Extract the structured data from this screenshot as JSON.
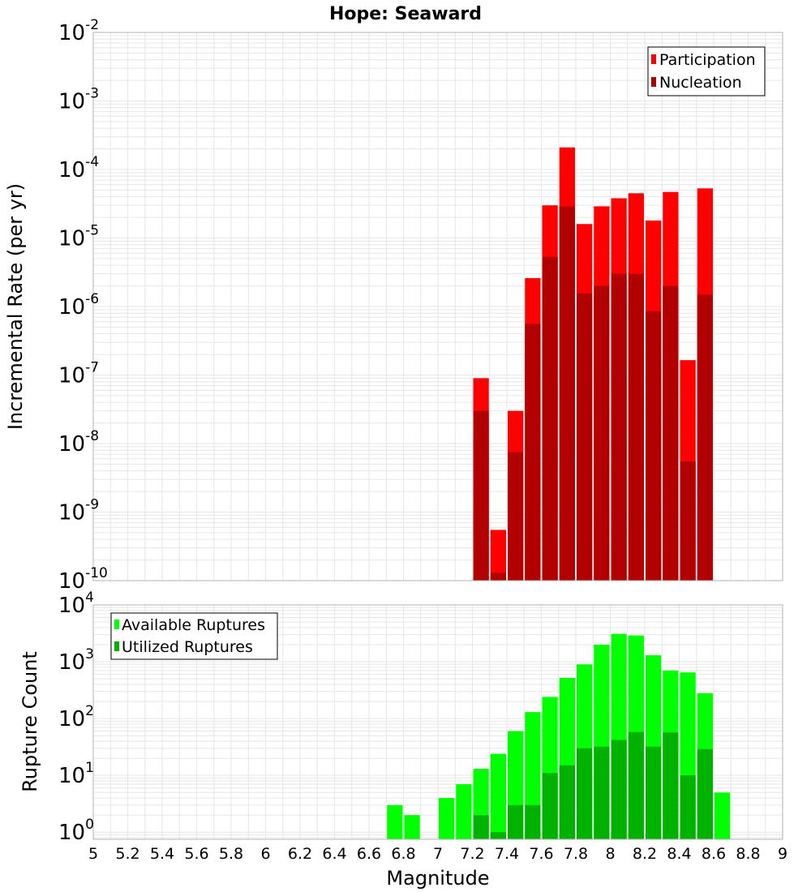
{
  "title": "Hope: Seaward",
  "x_axis": {
    "label": "Magnitude",
    "min": 5,
    "max": 9,
    "tick_labels": [
      "5",
      "5.2",
      "5.4",
      "5.6",
      "5.8",
      "6",
      "6.2",
      "6.4",
      "6.6",
      "6.8",
      "7",
      "7.2",
      "7.4",
      "7.6",
      "7.8",
      "8",
      "8.2",
      "8.4",
      "8.6",
      "8.8",
      "9"
    ]
  },
  "colors": {
    "participation": "#ff0000",
    "nucleation": "#b20000",
    "available": "#00ff00",
    "utilized": "#00b200",
    "grid": "#e6e6e6",
    "frame": "#b3b3b3"
  },
  "chart_data": [
    {
      "type": "bar",
      "name": "rate_panel",
      "ylabel": "Incremental Rate (per yr)",
      "yscale": "log",
      "ylim_exp": [
        -10,
        -2
      ],
      "y_tick_labels": [
        {
          "base": "10",
          "exp": "-2"
        },
        {
          "base": "10",
          "exp": "-3"
        },
        {
          "base": "10",
          "exp": "-4"
        },
        {
          "base": "10",
          "exp": "-5"
        },
        {
          "base": "10",
          "exp": "-6"
        },
        {
          "base": "10",
          "exp": "-7"
        },
        {
          "base": "10",
          "exp": "-8"
        },
        {
          "base": "10",
          "exp": "-9"
        },
        {
          "base": "10",
          "exp": "-10"
        }
      ],
      "legend": [
        "Participation",
        "Nucleation"
      ],
      "legend_position": "top-right",
      "grid": true,
      "x": [
        7.25,
        7.35,
        7.45,
        7.55,
        7.65,
        7.75,
        7.85,
        7.95,
        8.05,
        8.15,
        8.25,
        8.35,
        8.45,
        8.55
      ],
      "series": [
        {
          "name": "Participation",
          "values": [
            9e-08,
            5.5e-10,
            3e-08,
            2.6e-06,
            3e-05,
            0.00021,
            1.6e-05,
            2.9e-05,
            3.8e-05,
            4.5e-05,
            1.8e-05,
            4.7e-05,
            1.65e-07,
            5.3e-05
          ]
        },
        {
          "name": "Nucleation",
          "values": [
            3e-08,
            1.3e-10,
            7.5e-09,
            5.6e-07,
            5.3e-06,
            2.9e-05,
            1.55e-06,
            2e-06,
            3e-06,
            3e-06,
            8.5e-07,
            2e-06,
            5.5e-09,
            1.5e-06
          ]
        }
      ]
    },
    {
      "type": "bar",
      "name": "count_panel",
      "ylabel": "Rupture Count",
      "yscale": "log",
      "ylim": [
        0.75,
        10000
      ],
      "y_tick_labels": [
        {
          "base": "10",
          "exp": "4"
        },
        {
          "base": "10",
          "exp": "3"
        },
        {
          "base": "10",
          "exp": "2"
        },
        {
          "base": "10",
          "exp": "1"
        },
        {
          "base": "10",
          "exp": "0"
        }
      ],
      "legend": [
        "Available Ruptures",
        "Utilized Ruptures"
      ],
      "legend_position": "top-left",
      "grid": true,
      "series": [
        {
          "name": "Available Ruptures",
          "x": [
            6.75,
            6.85,
            7.05,
            7.15,
            7.25,
            7.35,
            7.45,
            7.55,
            7.65,
            7.75,
            7.85,
            7.95,
            8.05,
            8.15,
            8.25,
            8.35,
            8.45,
            8.55,
            8.65
          ],
          "values": [
            3,
            2,
            4,
            7,
            13,
            24,
            60,
            130,
            240,
            520,
            900,
            2000,
            3100,
            2900,
            1300,
            700,
            650,
            280,
            5
          ]
        },
        {
          "name": "Utilized Ruptures",
          "x": [
            7.25,
            7.35,
            7.45,
            7.55,
            7.65,
            7.75,
            7.85,
            7.95,
            8.05,
            8.15,
            8.25,
            8.35,
            8.45,
            8.55
          ],
          "values": [
            2,
            1,
            3,
            3,
            11,
            15,
            30,
            32,
            42,
            58,
            32,
            57,
            10,
            29
          ]
        }
      ]
    }
  ]
}
